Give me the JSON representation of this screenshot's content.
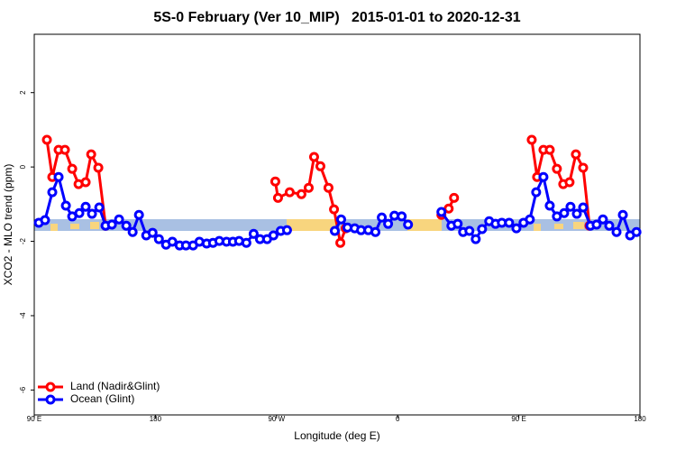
{
  "chart_data": {
    "type": "line",
    "title": "5S-0 February (Ver 10_MIP)   2015-01-01 to 2020-12-31",
    "x_label": "Longitude (deg E)",
    "y_label": "XCO2 - MLO trend (ppm)",
    "xlim": [
      90,
      540
    ],
    "xticks": [
      {
        "value": 90,
        "label": "90 E"
      },
      180,
      {
        "value": 270,
        "label": "90 W"
      },
      {
        "value": 360,
        "label": "0"
      },
      {
        "value": 450,
        "label": "90 E"
      },
      {
        "value": 540,
        "label": "180"
      }
    ],
    "ylim": [
      -6.67,
      3.57
    ],
    "yticks": [
      -6,
      -4,
      -2,
      0,
      2
    ],
    "legend": "bottom-left",
    "series": [
      {
        "name": "Land (Nadir&Glint)",
        "color": "#ff0000",
        "x": [
          99.4,
          103.4,
          108.1,
          112.8,
          118.2,
          122.9,
          128.2,
          132.3,
          137.6,
          143.0,
          null,
          269.1,
          271.1,
          279.8,
          288.5,
          293.9,
          297.9,
          302.6,
          308.6,
          312.7,
          317.4,
          321.4,
          null,
          392.5,
          397.9,
          401.9,
          null,
          459.6,
          463.6,
          468.3,
          473.0,
          478.3,
          483.0,
          487.7,
          492.4,
          497.8,
          502.5
        ],
        "values": [
          0.73,
          -0.27,
          0.46,
          0.46,
          -0.05,
          -0.46,
          -0.41,
          0.34,
          -0.02,
          -1.58,
          null,
          -0.39,
          -0.83,
          -0.68,
          -0.73,
          -0.56,
          0.27,
          0.02,
          -0.56,
          -1.14,
          -2.04,
          -1.65,
          null,
          -1.29,
          -1.12,
          -0.83,
          null,
          0.73,
          -0.27,
          0.46,
          0.46,
          -0.05,
          -0.46,
          -0.41,
          0.34,
          -0.02,
          -1.58
        ]
      },
      {
        "name": "Ocean (Glint)",
        "color": "#0000ff",
        "x": [
          93.4,
          98.0,
          103.4,
          108.1,
          113.5,
          118.2,
          123.5,
          128.2,
          132.9,
          138.3,
          143.0,
          147.7,
          153.0,
          158.4,
          163.1,
          167.8,
          173.2,
          177.9,
          182.6,
          187.9,
          192.6,
          198.0,
          202.7,
          208.0,
          212.7,
          218.1,
          222.8,
          227.5,
          232.9,
          237.6,
          242.2,
          247.6,
          253.0,
          257.7,
          263.0,
          267.7,
          273.1,
          277.8,
          null,
          313.3,
          318.0,
          322.7,
          328.1,
          332.8,
          338.2,
          343.5,
          348.2,
          352.9,
          357.6,
          363.0,
          367.7,
          null,
          392.5,
          399.9,
          404.6,
          408.6,
          413.3,
          418.0,
          422.7,
          428.0,
          432.7,
          437.4,
          442.8,
          448.2,
          453.5,
          458.2,
          462.9,
          468.3,
          473.0,
          478.3,
          483.7,
          488.4,
          493.1,
          497.8,
          503.2,
          507.8,
          512.5,
          517.2,
          522.6,
          527.3,
          532.7,
          537.4
        ],
        "values": [
          -1.5,
          -1.43,
          -0.68,
          -0.27,
          -1.04,
          -1.33,
          -1.24,
          -1.07,
          -1.26,
          -1.09,
          -1.58,
          -1.55,
          -1.41,
          -1.58,
          -1.75,
          -1.29,
          -1.84,
          -1.77,
          -1.94,
          -2.09,
          -2.01,
          -2.11,
          -2.11,
          -2.11,
          -2.01,
          -2.06,
          -2.04,
          -1.99,
          -2.01,
          -2.01,
          -1.99,
          -2.04,
          -1.8,
          -1.94,
          -1.94,
          -1.84,
          -1.72,
          -1.7,
          null,
          -1.72,
          -1.41,
          -1.63,
          -1.65,
          -1.7,
          -1.7,
          -1.75,
          -1.36,
          -1.53,
          -1.31,
          -1.33,
          -1.55,
          null,
          -1.21,
          -1.58,
          -1.53,
          -1.75,
          -1.72,
          -1.94,
          -1.67,
          -1.46,
          -1.53,
          -1.5,
          -1.5,
          -1.65,
          -1.5,
          -1.41,
          -0.68,
          -0.27,
          -1.04,
          -1.33,
          -1.24,
          -1.07,
          -1.26,
          -1.09,
          -1.58,
          -1.55,
          -1.41,
          -1.58,
          -1.75,
          -1.29,
          -1.84,
          -1.75
        ]
      }
    ]
  }
}
